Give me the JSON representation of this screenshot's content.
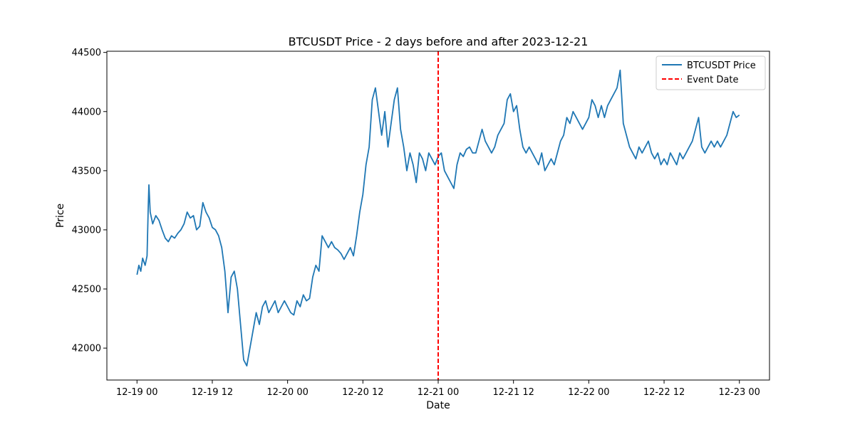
{
  "chart_data": {
    "type": "line",
    "title": "BTCUSDT Price - 2 days before and after 2023-12-21",
    "xlabel": "Date",
    "ylabel": "Price",
    "x_ticks": [
      {
        "label": "12-19 00",
        "hours": 0
      },
      {
        "label": "12-19 12",
        "hours": 12
      },
      {
        "label": "12-20 00",
        "hours": 24
      },
      {
        "label": "12-20 12",
        "hours": 36
      },
      {
        "label": "12-21 00",
        "hours": 48
      },
      {
        "label": "12-21 12",
        "hours": 60
      },
      {
        "label": "12-22 00",
        "hours": 72
      },
      {
        "label": "12-22 12",
        "hours": 84
      },
      {
        "label": "12-23 00",
        "hours": 96
      }
    ],
    "y_ticks": [
      42000,
      42500,
      43000,
      43500,
      44000,
      44500
    ],
    "xlim_hours": [
      -4.8,
      100.8
    ],
    "ylim": [
      41730,
      44510
    ],
    "grid": false,
    "legend_position": "upper-right",
    "legend": [
      {
        "label": "BTCUSDT Price",
        "color": "#1f77b4",
        "style": "solid"
      },
      {
        "label": "Event Date",
        "color": "#ff0000",
        "style": "dashed"
      }
    ],
    "event_line": {
      "label": "Event Date",
      "hours": 48
    },
    "series": [
      {
        "name": "BTCUSDT Price",
        "color": "#1f77b4",
        "points": [
          [
            0.0,
            42620
          ],
          [
            0.3,
            42700
          ],
          [
            0.6,
            42650
          ],
          [
            0.9,
            42760
          ],
          [
            1.3,
            42700
          ],
          [
            1.6,
            42780
          ],
          [
            1.8,
            43200
          ],
          [
            1.9,
            43380
          ],
          [
            2.1,
            43150
          ],
          [
            2.5,
            43050
          ],
          [
            3.0,
            43120
          ],
          [
            3.5,
            43080
          ],
          [
            4.0,
            43000
          ],
          [
            4.5,
            42930
          ],
          [
            5.0,
            42900
          ],
          [
            5.5,
            42950
          ],
          [
            6.0,
            42930
          ],
          [
            6.5,
            42970
          ],
          [
            7.0,
            43000
          ],
          [
            7.5,
            43050
          ],
          [
            8.0,
            43150
          ],
          [
            8.5,
            43100
          ],
          [
            9.0,
            43120
          ],
          [
            9.5,
            43000
          ],
          [
            10.0,
            43030
          ],
          [
            10.5,
            43230
          ],
          [
            11.0,
            43150
          ],
          [
            11.5,
            43100
          ],
          [
            12.0,
            43020
          ],
          [
            12.5,
            43000
          ],
          [
            13.0,
            42950
          ],
          [
            13.5,
            42850
          ],
          [
            14.0,
            42650
          ],
          [
            14.5,
            42300
          ],
          [
            15.0,
            42600
          ],
          [
            15.5,
            42650
          ],
          [
            16.0,
            42500
          ],
          [
            16.5,
            42200
          ],
          [
            17.0,
            41900
          ],
          [
            17.5,
            41850
          ],
          [
            18.0,
            42000
          ],
          [
            18.5,
            42150
          ],
          [
            19.0,
            42300
          ],
          [
            19.5,
            42200
          ],
          [
            20.0,
            42350
          ],
          [
            20.5,
            42400
          ],
          [
            21.0,
            42300
          ],
          [
            21.5,
            42350
          ],
          [
            22.0,
            42400
          ],
          [
            22.5,
            42300
          ],
          [
            23.0,
            42350
          ],
          [
            23.5,
            42400
          ],
          [
            24.0,
            42350
          ],
          [
            24.5,
            42300
          ],
          [
            25.0,
            42280
          ],
          [
            25.5,
            42400
          ],
          [
            26.0,
            42350
          ],
          [
            26.5,
            42450
          ],
          [
            27.0,
            42400
          ],
          [
            27.5,
            42420
          ],
          [
            28.0,
            42600
          ],
          [
            28.5,
            42700
          ],
          [
            29.0,
            42650
          ],
          [
            29.5,
            42950
          ],
          [
            30.0,
            42900
          ],
          [
            30.5,
            42850
          ],
          [
            31.0,
            42900
          ],
          [
            31.5,
            42850
          ],
          [
            32.0,
            42830
          ],
          [
            32.5,
            42800
          ],
          [
            33.0,
            42750
          ],
          [
            33.5,
            42800
          ],
          [
            34.0,
            42850
          ],
          [
            34.5,
            42780
          ],
          [
            35.0,
            42950
          ],
          [
            35.5,
            43150
          ],
          [
            36.0,
            43300
          ],
          [
            36.5,
            43550
          ],
          [
            37.0,
            43700
          ],
          [
            37.5,
            44100
          ],
          [
            38.0,
            44200
          ],
          [
            38.5,
            44000
          ],
          [
            39.0,
            43800
          ],
          [
            39.5,
            44000
          ],
          [
            40.0,
            43700
          ],
          [
            40.5,
            43900
          ],
          [
            41.0,
            44100
          ],
          [
            41.5,
            44200
          ],
          [
            42.0,
            43850
          ],
          [
            42.5,
            43700
          ],
          [
            43.0,
            43500
          ],
          [
            43.5,
            43650
          ],
          [
            44.0,
            43550
          ],
          [
            44.5,
            43400
          ],
          [
            45.0,
            43650
          ],
          [
            45.5,
            43600
          ],
          [
            46.0,
            43500
          ],
          [
            46.5,
            43650
          ],
          [
            47.0,
            43600
          ],
          [
            47.5,
            43550
          ],
          [
            48.0,
            43620
          ],
          [
            48.5,
            43650
          ],
          [
            49.0,
            43500
          ],
          [
            49.5,
            43450
          ],
          [
            50.0,
            43400
          ],
          [
            50.5,
            43350
          ],
          [
            51.0,
            43550
          ],
          [
            51.5,
            43650
          ],
          [
            52.0,
            43620
          ],
          [
            52.5,
            43680
          ],
          [
            53.0,
            43700
          ],
          [
            53.5,
            43650
          ],
          [
            54.0,
            43650
          ],
          [
            54.5,
            43750
          ],
          [
            55.0,
            43850
          ],
          [
            55.5,
            43750
          ],
          [
            56.0,
            43700
          ],
          [
            56.5,
            43650
          ],
          [
            57.0,
            43700
          ],
          [
            57.5,
            43800
          ],
          [
            58.0,
            43850
          ],
          [
            58.5,
            43900
          ],
          [
            59.0,
            44100
          ],
          [
            59.5,
            44150
          ],
          [
            60.0,
            44000
          ],
          [
            60.5,
            44050
          ],
          [
            61.0,
            43850
          ],
          [
            61.5,
            43700
          ],
          [
            62.0,
            43650
          ],
          [
            62.5,
            43700
          ],
          [
            63.0,
            43650
          ],
          [
            63.5,
            43600
          ],
          [
            64.0,
            43550
          ],
          [
            64.5,
            43650
          ],
          [
            65.0,
            43500
          ],
          [
            65.5,
            43550
          ],
          [
            66.0,
            43600
          ],
          [
            66.5,
            43550
          ],
          [
            67.0,
            43650
          ],
          [
            67.5,
            43750
          ],
          [
            68.0,
            43800
          ],
          [
            68.5,
            43950
          ],
          [
            69.0,
            43900
          ],
          [
            69.5,
            44000
          ],
          [
            70.0,
            43950
          ],
          [
            70.5,
            43900
          ],
          [
            71.0,
            43850
          ],
          [
            71.5,
            43900
          ],
          [
            72.0,
            43950
          ],
          [
            72.5,
            44100
          ],
          [
            73.0,
            44050
          ],
          [
            73.5,
            43950
          ],
          [
            74.0,
            44050
          ],
          [
            74.5,
            43950
          ],
          [
            75.0,
            44050
          ],
          [
            75.5,
            44100
          ],
          [
            76.0,
            44150
          ],
          [
            76.5,
            44200
          ],
          [
            77.0,
            44350
          ],
          [
            77.5,
            43900
          ],
          [
            78.0,
            43800
          ],
          [
            78.5,
            43700
          ],
          [
            79.0,
            43650
          ],
          [
            79.5,
            43600
          ],
          [
            80.0,
            43700
          ],
          [
            80.5,
            43650
          ],
          [
            81.0,
            43700
          ],
          [
            81.5,
            43750
          ],
          [
            82.0,
            43650
          ],
          [
            82.5,
            43600
          ],
          [
            83.0,
            43650
          ],
          [
            83.5,
            43550
          ],
          [
            84.0,
            43600
          ],
          [
            84.5,
            43550
          ],
          [
            85.0,
            43650
          ],
          [
            85.5,
            43600
          ],
          [
            86.0,
            43550
          ],
          [
            86.5,
            43650
          ],
          [
            87.0,
            43600
          ],
          [
            87.5,
            43650
          ],
          [
            88.0,
            43700
          ],
          [
            88.5,
            43750
          ],
          [
            89.0,
            43850
          ],
          [
            89.5,
            43950
          ],
          [
            90.0,
            43700
          ],
          [
            90.5,
            43650
          ],
          [
            91.0,
            43700
          ],
          [
            91.5,
            43750
          ],
          [
            92.0,
            43700
          ],
          [
            92.5,
            43750
          ],
          [
            93.0,
            43700
          ],
          [
            93.5,
            43750
          ],
          [
            94.0,
            43800
          ],
          [
            94.5,
            43900
          ],
          [
            95.0,
            44000
          ],
          [
            95.5,
            43950
          ],
          [
            96.0,
            43970
          ]
        ]
      }
    ]
  }
}
